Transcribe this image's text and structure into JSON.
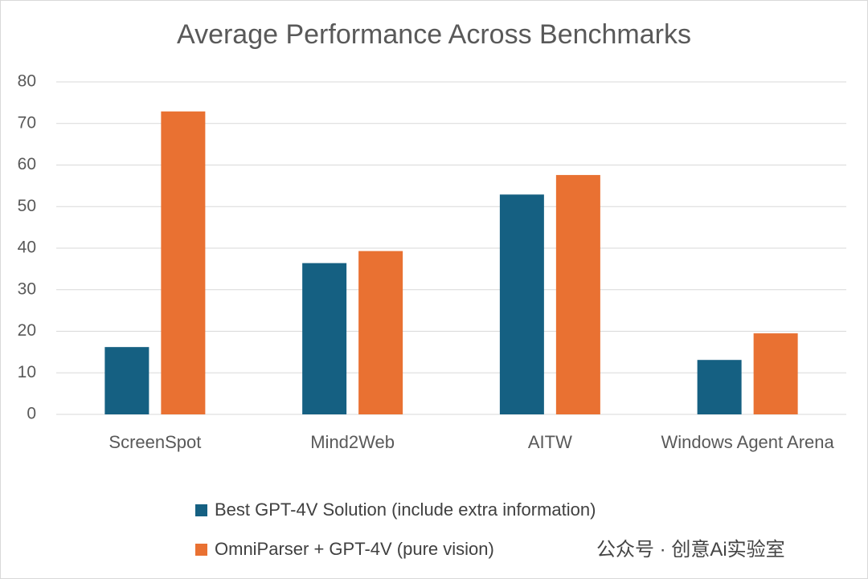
{
  "chart_data": {
    "type": "bar",
    "title": "Average Performance Across Benchmarks",
    "categories": [
      "ScreenSpot",
      "Mind2Web",
      "AITW",
      "Windows Agent Arena"
    ],
    "series": [
      {
        "name": "Best GPT-4V Solution (include extra information)",
        "color": "#156082",
        "values": [
          16.2,
          36.4,
          52.9,
          13.1
        ]
      },
      {
        "name": "OmniParser + GPT-4V (pure vision)",
        "color": "#e97132",
        "values": [
          72.9,
          39.3,
          57.6,
          19.5
        ]
      }
    ],
    "ylim": [
      0,
      80
    ],
    "yticks": [
      0,
      10,
      20,
      30,
      40,
      50,
      60,
      70,
      80
    ],
    "grid": true,
    "legend": "bottom",
    "watermark": "公众号 · 创意Ai实验室"
  }
}
